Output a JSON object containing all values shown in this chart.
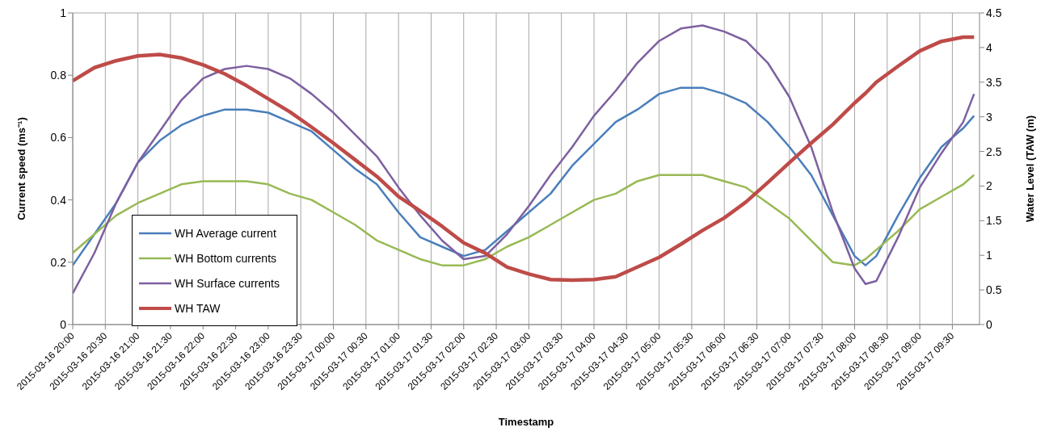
{
  "chart_data": {
    "type": "line",
    "xlabel": "Timestamp",
    "ylabel": "Current speed (ms⁻¹)",
    "y2label": "Water Level (TAW (m)",
    "x": [
      "2015-03-16T20:00",
      "2015-03-16T20:20",
      "2015-03-16T20:40",
      "2015-03-16T21:00",
      "2015-03-16T21:20",
      "2015-03-16T21:40",
      "2015-03-16T22:00",
      "2015-03-16T22:20",
      "2015-03-16T22:40",
      "2015-03-16T23:00",
      "2015-03-16T23:20",
      "2015-03-16T23:40",
      "2015-03-17T00:00",
      "2015-03-17T00:20",
      "2015-03-17T00:40",
      "2015-03-17T01:00",
      "2015-03-17T01:20",
      "2015-03-17T01:40",
      "2015-03-17T02:00",
      "2015-03-17T02:20",
      "2015-03-17T02:40",
      "2015-03-17T03:00",
      "2015-03-17T03:20",
      "2015-03-17T03:40",
      "2015-03-17T04:00",
      "2015-03-17T04:20",
      "2015-03-17T04:40",
      "2015-03-17T05:00",
      "2015-03-17T05:20",
      "2015-03-17T05:40",
      "2015-03-17T06:00",
      "2015-03-17T06:20",
      "2015-03-17T06:40",
      "2015-03-17T07:00",
      "2015-03-17T07:20",
      "2015-03-17T07:40",
      "2015-03-17T08:00",
      "2015-03-17T08:10",
      "2015-03-17T08:20",
      "2015-03-17T08:40",
      "2015-03-17T09:00",
      "2015-03-17T09:20",
      "2015-03-17T09:40",
      "2015-03-17T09:50"
    ],
    "series": [
      {
        "name": "WH Average current",
        "color": "#4a7ebb",
        "values": [
          0.19,
          0.29,
          0.39,
          0.52,
          0.59,
          0.64,
          0.67,
          0.69,
          0.69,
          0.68,
          0.65,
          0.62,
          0.56,
          0.5,
          0.45,
          0.36,
          0.28,
          0.25,
          0.22,
          0.24,
          0.3,
          0.36,
          0.42,
          0.51,
          0.58,
          0.65,
          0.69,
          0.74,
          0.76,
          0.76,
          0.74,
          0.71,
          0.65,
          0.57,
          0.48,
          0.35,
          0.22,
          0.19,
          0.22,
          0.35,
          0.47,
          0.57,
          0.63,
          0.67
        ]
      },
      {
        "name": "WH Bottom currents",
        "color": "#98b954",
        "values": [
          0.23,
          0.29,
          0.35,
          0.39,
          0.42,
          0.45,
          0.46,
          0.46,
          0.46,
          0.45,
          0.42,
          0.4,
          0.36,
          0.32,
          0.27,
          0.24,
          0.21,
          0.19,
          0.19,
          0.21,
          0.25,
          0.28,
          0.32,
          0.36,
          0.4,
          0.42,
          0.46,
          0.48,
          0.48,
          0.48,
          0.46,
          0.44,
          0.39,
          0.34,
          0.27,
          0.2,
          0.19,
          0.21,
          0.24,
          0.3,
          0.37,
          0.41,
          0.45,
          0.48
        ]
      },
      {
        "name": "WH Surface currents",
        "color": "#7d60a0",
        "values": [
          0.1,
          0.23,
          0.39,
          0.52,
          0.62,
          0.72,
          0.79,
          0.82,
          0.83,
          0.82,
          0.79,
          0.74,
          0.68,
          0.61,
          0.54,
          0.44,
          0.35,
          0.27,
          0.21,
          0.22,
          0.29,
          0.38,
          0.48,
          0.57,
          0.67,
          0.75,
          0.84,
          0.91,
          0.95,
          0.96,
          0.94,
          0.91,
          0.84,
          0.73,
          0.57,
          0.36,
          0.18,
          0.13,
          0.14,
          0.28,
          0.44,
          0.55,
          0.65,
          0.74
        ]
      },
      {
        "name": "WH TAW",
        "color": "#be4b48",
        "axis": "y2",
        "values": [
          3.52,
          3.71,
          3.81,
          3.88,
          3.9,
          3.85,
          3.75,
          3.62,
          3.45,
          3.26,
          3.07,
          2.85,
          2.62,
          2.38,
          2.14,
          1.85,
          1.64,
          1.42,
          1.18,
          1.03,
          0.83,
          0.73,
          0.65,
          0.64,
          0.65,
          0.69,
          0.83,
          0.97,
          1.16,
          1.36,
          1.54,
          1.77,
          2.05,
          2.34,
          2.62,
          2.89,
          3.2,
          3.34,
          3.5,
          3.73,
          3.95,
          4.09,
          4.15,
          4.15
        ]
      }
    ],
    "xlim": [
      "2015-03-16T20:00",
      "2015-03-17T09:55"
    ],
    "xticks": [
      {
        "value": "2015-03-16T20:00",
        "label": "2015-03-16 20:00"
      },
      {
        "value": "2015-03-16T20:30",
        "label": "2015-03-16 20:30"
      },
      {
        "value": "2015-03-16T21:00",
        "label": "2015-03-16 21:00"
      },
      {
        "value": "2015-03-16T21:30",
        "label": "2015-03-16 21:30"
      },
      {
        "value": "2015-03-16T22:00",
        "label": "2015-03-16 22:00"
      },
      {
        "value": "2015-03-16T22:30",
        "label": "2015-03-16 22:30"
      },
      {
        "value": "2015-03-16T23:00",
        "label": "2015-03-16 23:00"
      },
      {
        "value": "2015-03-16T23:30",
        "label": "2015-03-16 23:30"
      },
      {
        "value": "2015-03-17T00:00",
        "label": "2015-03-17 00:00"
      },
      {
        "value": "2015-03-17T00:30",
        "label": "2015-03-17 00:30"
      },
      {
        "value": "2015-03-17T01:00",
        "label": "2015-03-17 01:00"
      },
      {
        "value": "2015-03-17T01:30",
        "label": "2015-03-17 01:30"
      },
      {
        "value": "2015-03-17T02:00",
        "label": "2015-03-17 02:00"
      },
      {
        "value": "2015-03-17T02:30",
        "label": "2015-03-17 02:30"
      },
      {
        "value": "2015-03-17T03:00",
        "label": "2015-03-17 03:00"
      },
      {
        "value": "2015-03-17T03:30",
        "label": "2015-03-17 03:30"
      },
      {
        "value": "2015-03-17T04:00",
        "label": "2015-03-17 04:00"
      },
      {
        "value": "2015-03-17T04:30",
        "label": "2015-03-17 04:30"
      },
      {
        "value": "2015-03-17T05:00",
        "label": "2015-03-17 05:00"
      },
      {
        "value": "2015-03-17T05:30",
        "label": "2015-03-17 05:30"
      },
      {
        "value": "2015-03-17T06:00",
        "label": "2015-03-17 06:00"
      },
      {
        "value": "2015-03-17T06:30",
        "label": "2015-03-17 06:30"
      },
      {
        "value": "2015-03-17T07:00",
        "label": "2015-03-17 07:00"
      },
      {
        "value": "2015-03-17T07:30",
        "label": "2015-03-17 07:30"
      },
      {
        "value": "2015-03-17T08:00",
        "label": "2015-03-17 08:00"
      },
      {
        "value": "2015-03-17T08:30",
        "label": "2015-03-17 08:30"
      },
      {
        "value": "2015-03-17T09:00",
        "label": "2015-03-17 09:00"
      },
      {
        "value": "2015-03-17T09:30",
        "label": "2015-03-17 09:30"
      }
    ],
    "ylim": [
      0,
      1
    ],
    "yticks": [
      0,
      0.2,
      0.4,
      0.6,
      0.8,
      1
    ],
    "y2lim": [
      0,
      4.5
    ],
    "y2ticks": [
      0,
      0.5,
      1,
      1.5,
      2,
      2.5,
      3,
      3.5,
      4,
      4.5
    ],
    "grid": true,
    "legend": "bottom left",
    "marker": "none",
    "line_style": "solid"
  }
}
